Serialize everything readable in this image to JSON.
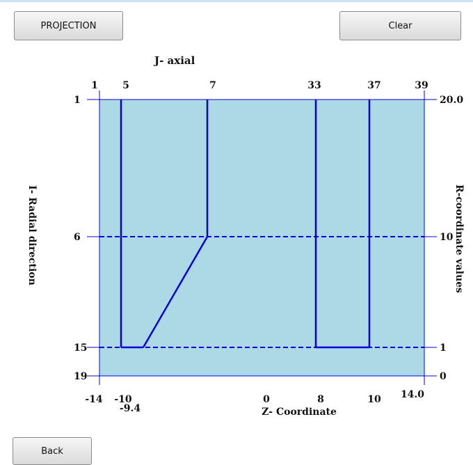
{
  "buttons": {
    "projection": "PROJECTION",
    "clear": "Clear",
    "back": "Back"
  },
  "plot": {
    "top_title": "J- axial",
    "left_title": "I- Radial direction",
    "right_title": "R-coordinate values",
    "bottom_title": "Z- Coordinate",
    "fill_color": "#add8e6",
    "line_color": "#0000dd",
    "j_ticks": [
      "1",
      "5",
      "7",
      "33",
      "37",
      "39"
    ],
    "i_ticks": [
      "1",
      "6",
      "15",
      "19"
    ],
    "r_ticks": [
      "20.0",
      "10",
      "1",
      "0"
    ],
    "z_ticks": [
      "-14",
      "-10",
      "-9.4",
      "0",
      "8",
      "10",
      "14.0"
    ]
  }
}
